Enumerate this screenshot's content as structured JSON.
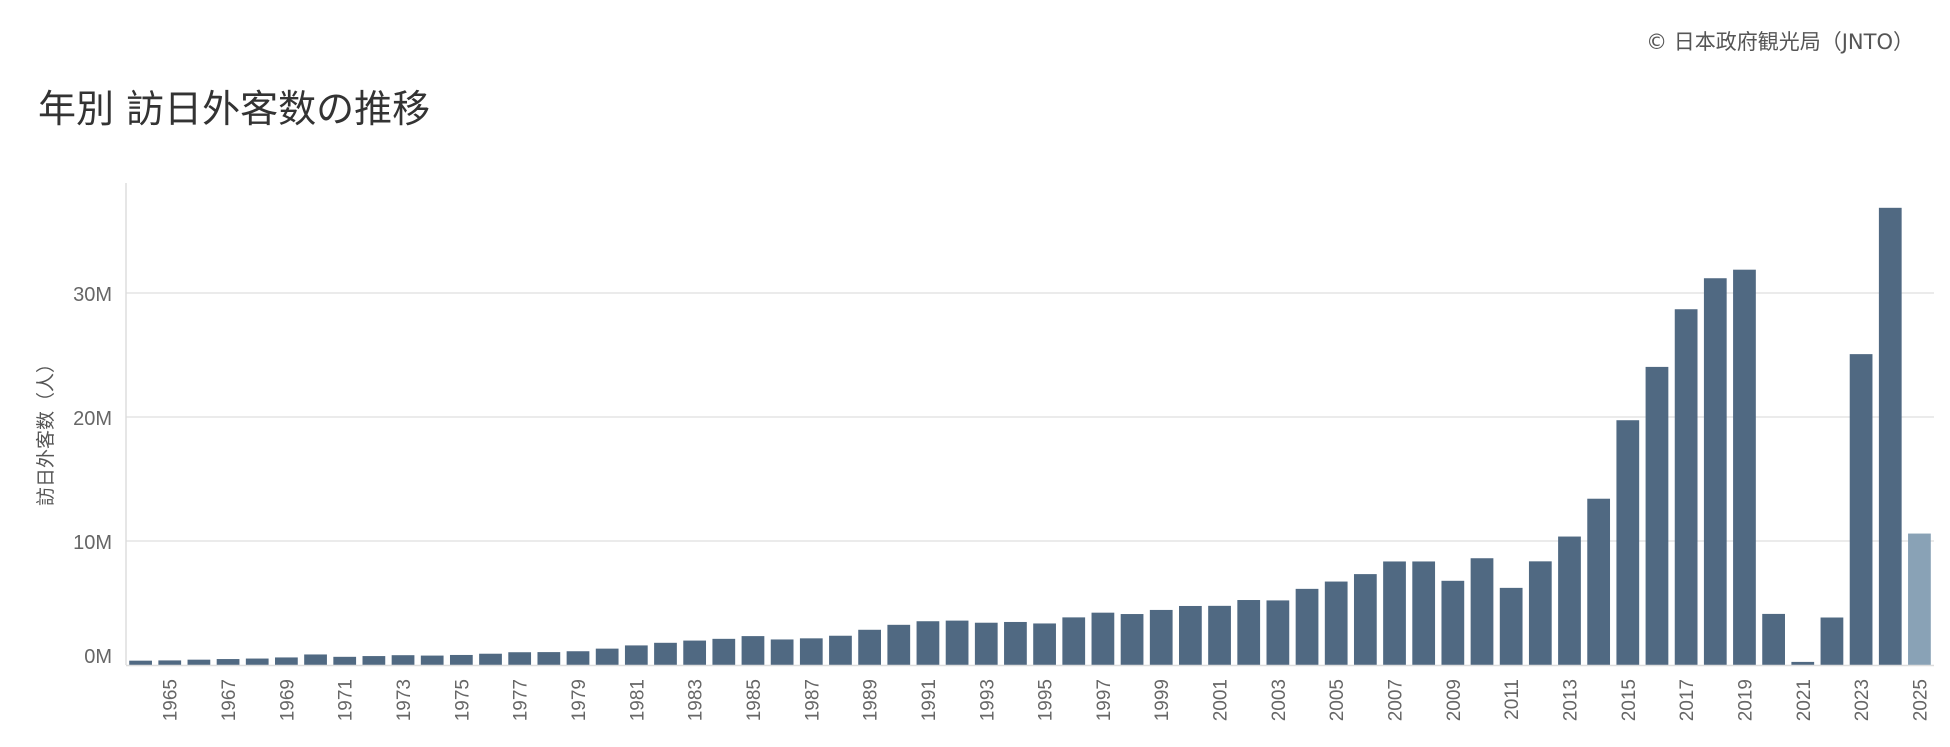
{
  "header": {
    "credit": "© 日本政府観光局（JNTO）",
    "title": "年別 訪日外客数の推移"
  },
  "colors": {
    "bar": "#506982",
    "bar_highlight": "#89a2b6",
    "grid": "#ebebeb",
    "axis": "#dddddd"
  },
  "chart_data": {
    "type": "bar",
    "title": "年別 訪日外客数の推移",
    "xlabel": "",
    "ylabel": "訪日外客数（人）",
    "ylim": [
      0,
      38000000
    ],
    "yticks": [
      0,
      10000000,
      20000000,
      30000000
    ],
    "ytick_labels": [
      "0M",
      "10M",
      "20M",
      "30M"
    ],
    "grid": true,
    "categories": [
      "1964",
      "1965",
      "1966",
      "1967",
      "1968",
      "1969",
      "1970",
      "1971",
      "1972",
      "1973",
      "1974",
      "1975",
      "1976",
      "1977",
      "1978",
      "1979",
      "1980",
      "1981",
      "1982",
      "1983",
      "1984",
      "1985",
      "1986",
      "1987",
      "1988",
      "1989",
      "1990",
      "1991",
      "1992",
      "1993",
      "1994",
      "1995",
      "1996",
      "1997",
      "1998",
      "1999",
      "2000",
      "2001",
      "2002",
      "2003",
      "2004",
      "2005",
      "2006",
      "2007",
      "2008",
      "2009",
      "2010",
      "2011",
      "2012",
      "2013",
      "2014",
      "2015",
      "2016",
      "2017",
      "2018",
      "2019",
      "2020",
      "2021",
      "2022",
      "2023",
      "2024",
      "2025"
    ],
    "xtick_labels": [
      "1965",
      "1967",
      "1969",
      "1971",
      "1973",
      "1975",
      "1977",
      "1979",
      "1981",
      "1983",
      "1985",
      "1987",
      "1989",
      "1991",
      "1993",
      "1995",
      "1997",
      "1999",
      "2001",
      "2003",
      "2005",
      "2007",
      "2009",
      "2011",
      "2013",
      "2015",
      "2017",
      "2019",
      "2021",
      "2023",
      "2025"
    ],
    "values": [
      350000,
      370000,
      430000,
      480000,
      520000,
      610000,
      850000,
      660000,
      720000,
      790000,
      760000,
      810000,
      910000,
      1030000,
      1040000,
      1110000,
      1320000,
      1580000,
      1790000,
      1970000,
      2110000,
      2330000,
      2060000,
      2150000,
      2360000,
      2840000,
      3240000,
      3530000,
      3580000,
      3410000,
      3470000,
      3350000,
      3840000,
      4220000,
      4110000,
      4440000,
      4760000,
      4770000,
      5240000,
      5210000,
      6140000,
      6730000,
      7330000,
      8350000,
      8350000,
      6790000,
      8610000,
      6220000,
      8360000,
      10360000,
      13410000,
      19740000,
      24040000,
      28690000,
      31190000,
      31880000,
      4120000,
      250000,
      3830000,
      25070000,
      36870000,
      10600000
    ],
    "highlight_index": 61
  }
}
